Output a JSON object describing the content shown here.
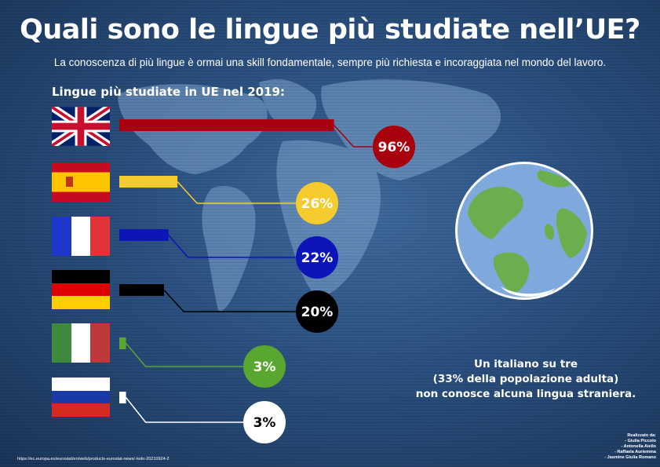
{
  "title": "Quali sono le lingue più studiate nell’UE?",
  "subtitle": "La conoscenza di più lingue è ormai una skill fondamentale, sempre più richiesta e incoraggiata nel mondo del lavoro.",
  "section_label": "Lingue più studiate in UE nel 2019:",
  "note_lines": [
    "Un italiano su tre",
    "(33% della popolazione adulta)",
    "non conosce alcuna lingua straniera."
  ],
  "credits": {
    "heading": "Realizzato da:",
    "names": [
      "- Giulia Piccolo",
      "- Antonella Aiello",
      "- Raffaela Auriemma",
      "- Jasmine Giulia Romano"
    ]
  },
  "source": "https://ec.europa.eu/eurostat/en/web/products-eurostat-news/-/edn-20210924-2",
  "colors": {
    "english": "#a8000c",
    "spanish": "#f6cb2e",
    "french": "#0d14b8",
    "german": "#000000",
    "italian": "#59a730",
    "russian": "#ffffff"
  },
  "chart_data": {
    "type": "bar",
    "title": "Lingue più studiate in UE nel 2019:",
    "categories": [
      "english-flag",
      "spanish-flag",
      "french-flag",
      "german-flag",
      "italian-flag",
      "russian-flag"
    ],
    "values": [
      96,
      26,
      22,
      20,
      3,
      3
    ],
    "value_labels": [
      "96%",
      "26%",
      "22%",
      "20%",
      "3%",
      "3%"
    ],
    "label_colors": [
      "#ffffff",
      "#ffffff",
      "#ffffff",
      "#ffffff",
      "#ffffff",
      "#000000"
    ],
    "ylim": [
      0,
      100
    ],
    "legend": "none",
    "grid": false
  }
}
